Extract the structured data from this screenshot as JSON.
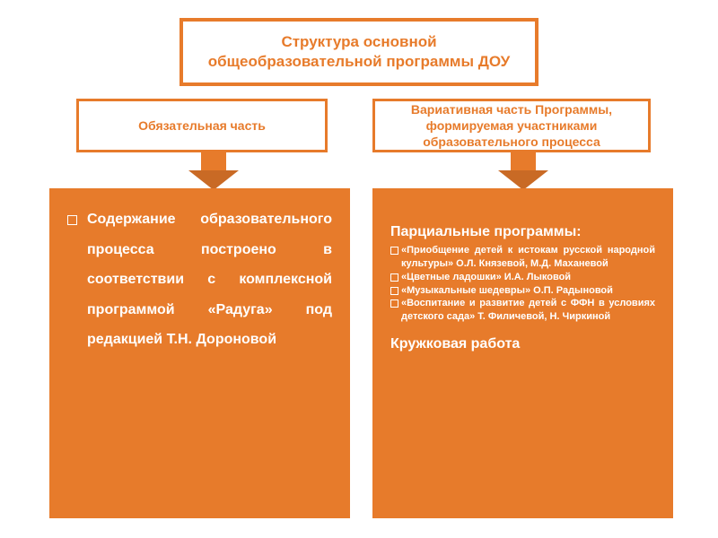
{
  "colors": {
    "orange": "#e77b2b",
    "orange_dark": "#c96a25",
    "white_box_bg": "#ffffff",
    "white_box_text": "#e77b2b",
    "white_box_border": "#e77b2b",
    "content_text": "#ffffff",
    "arrow_stem": "#e77b2b",
    "arrow_head": "#c96a25"
  },
  "title": "Структура основной общеобразовательной программы ДОУ",
  "left": {
    "header": "Обязательная часть",
    "items": [
      "Содержание образовательного процесса построено в соответствии с комплексной программой «Радуга» под редакцией Т.Н. Дороновой"
    ]
  },
  "right": {
    "header": "Вариативная часть Программы, формируемая участниками образовательного процесса",
    "subtitle": "Парциальные программы:",
    "items": [
      "«Приобщение детей к истокам русской народной культуры» О.Л. Князевой, М.Д. Маханевой",
      "«Цветные ладошки» И.А. Лыковой",
      "«Музыкальные шедевры» О.П. Радыновой",
      "«Воспитание и развитие детей с ФФН в условиях детского сада» Т. Филичевой, Н. Чиркиной"
    ],
    "subtitle2": "Кружковая работа"
  }
}
